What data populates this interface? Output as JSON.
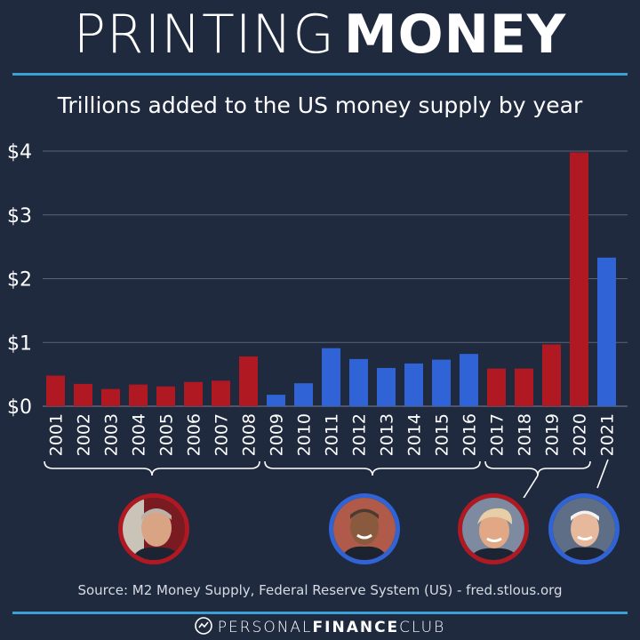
{
  "header": {
    "title_light": "PRINTING",
    "title_bold": "MONEY",
    "subtitle": "Trillions added to the US money supply by year"
  },
  "colors": {
    "background": "#1f2a3f",
    "accent": "#3d9fd8",
    "republican": "#b01921",
    "democrat": "#2f63d6",
    "gridline": "#5b6476"
  },
  "chart_data": {
    "type": "bar",
    "categories": [
      "2001",
      "2002",
      "2003",
      "2004",
      "2005",
      "2006",
      "2007",
      "2008",
      "2009",
      "2010",
      "2011",
      "2012",
      "2013",
      "2014",
      "2015",
      "2016",
      "2017",
      "2018",
      "2019",
      "2020",
      "2021"
    ],
    "values": [
      0.48,
      0.35,
      0.27,
      0.34,
      0.31,
      0.38,
      0.4,
      0.78,
      0.18,
      0.36,
      0.91,
      0.74,
      0.6,
      0.67,
      0.73,
      0.82,
      0.59,
      0.59,
      0.97,
      3.98,
      2.33
    ],
    "bar_colors": [
      "#b01921",
      "#b01921",
      "#b01921",
      "#b01921",
      "#b01921",
      "#b01921",
      "#b01921",
      "#b01921",
      "#2f63d6",
      "#2f63d6",
      "#2f63d6",
      "#2f63d6",
      "#2f63d6",
      "#2f63d6",
      "#2f63d6",
      "#2f63d6",
      "#b01921",
      "#b01921",
      "#b01921",
      "#b01921",
      "#2f63d6"
    ],
    "ytick_labels": [
      "$0",
      "$1",
      "$2",
      "$3",
      "$4"
    ],
    "yticks": [
      0,
      1,
      2,
      3,
      4
    ],
    "ylim": [
      0,
      4
    ],
    "grid": true,
    "title": "Trillions added to the US money supply by year",
    "xlabel": "",
    "ylabel": ""
  },
  "presidents": [
    {
      "name": "george-w-bush",
      "from": "2001",
      "to": "2008",
      "border": "#b01921"
    },
    {
      "name": "barack-obama",
      "from": "2009",
      "to": "2016",
      "border": "#2f63d6"
    },
    {
      "name": "donald-trump",
      "from": "2017",
      "to": "2020",
      "border": "#b01921"
    },
    {
      "name": "joe-biden",
      "from": "2021",
      "to": "2021",
      "border": "#2f63d6"
    }
  ],
  "footer": {
    "source": "Source: M2 Money Supply, Federal Reserve System (US) - fred.stlous.org",
    "brand_light_1": "PERSONAL",
    "brand_bold": "FINANCE",
    "brand_light_2": "CLUB"
  }
}
